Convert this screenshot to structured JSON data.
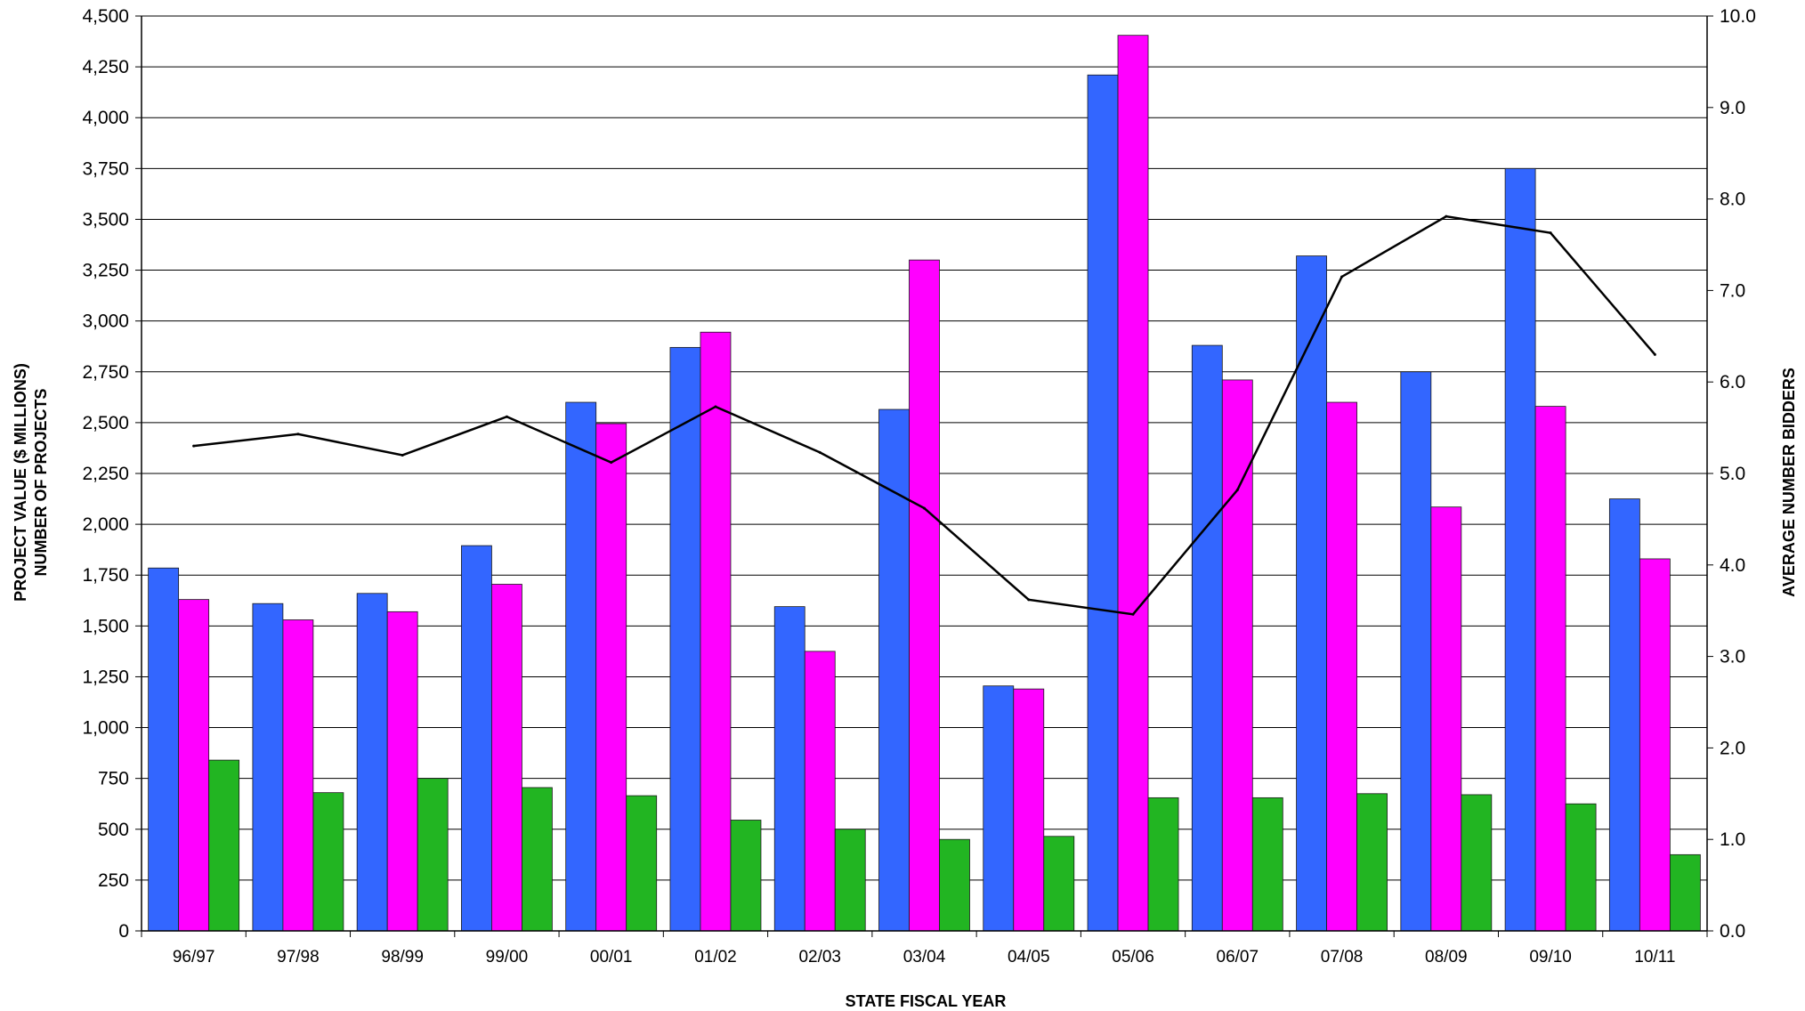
{
  "chart_data": {
    "type": "bar",
    "categories": [
      "96/97",
      "97/98",
      "98/99",
      "99/00",
      "00/01",
      "01/02",
      "02/03",
      "03/04",
      "04/05",
      "05/06",
      "06/07",
      "07/08",
      "08/09",
      "09/10",
      "10/11"
    ],
    "series": [
      {
        "color": "#3366FF",
        "axis": "left",
        "kind": "bar",
        "values": [
          1785,
          1610,
          1660,
          1895,
          2600,
          2870,
          1595,
          2565,
          1205,
          4210,
          2880,
          3320,
          2750,
          3750,
          2125
        ]
      },
      {
        "color": "#FF00FF",
        "axis": "left",
        "kind": "bar",
        "values": [
          1630,
          1530,
          1570,
          1705,
          2495,
          2945,
          1375,
          3300,
          1190,
          4405,
          2710,
          2600,
          2085,
          2580,
          1830
        ]
      },
      {
        "color": "#22B522",
        "axis": "left",
        "kind": "bar",
        "values": [
          840,
          680,
          750,
          705,
          665,
          545,
          500,
          450,
          465,
          655,
          655,
          675,
          670,
          625,
          375
        ]
      },
      {
        "color": "#000000",
        "axis": "right",
        "kind": "line",
        "values": [
          5.3,
          5.43,
          5.2,
          5.62,
          5.12,
          5.73,
          5.23,
          4.62,
          3.62,
          3.46,
          4.82,
          7.15,
          7.81,
          7.63,
          6.3
        ]
      }
    ],
    "ylabel_lines": [
      "PROJECT VALUE ($ MILLIONS)",
      "NUMBER OF PROJECTS"
    ],
    "y2label": "AVERAGE NUMBER BIDDERS",
    "xlabel": "STATE FISCAL YEAR",
    "ylim": [
      0,
      4500
    ],
    "y2lim": [
      0,
      10
    ],
    "yticks": [
      "0",
      "250",
      "500",
      "750",
      "1,000",
      "1,250",
      "1,500",
      "1,750",
      "2,000",
      "2,250",
      "2,500",
      "2,750",
      "3,000",
      "3,250",
      "3,500",
      "3,750",
      "4,000",
      "4,250",
      "4,500"
    ],
    "y2ticks": [
      "0.0",
      "1.0",
      "2.0",
      "3.0",
      "4.0",
      "5.0",
      "6.0",
      "7.0",
      "8.0",
      "9.0",
      "10.0"
    ],
    "grid": true,
    "legend": "none"
  }
}
